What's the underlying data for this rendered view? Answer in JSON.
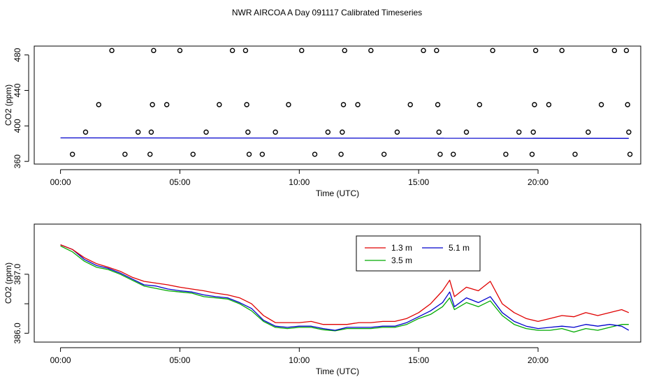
{
  "figure_title": "NWR AIRCOA A  Day 091117  Calibrated Timeseries",
  "chart_data": [
    {
      "type": "scatter",
      "title": "",
      "xlabel": "Time (UTC)",
      "ylabel": "CO2 (ppm)",
      "xlim": [
        -1.1,
        24.3
      ],
      "ylim": [
        357,
        490
      ],
      "x_tick_values": [
        0,
        5,
        10,
        15,
        20
      ],
      "x_tick_labels": [
        "00:00",
        "05:00",
        "10:00",
        "15:00",
        "20:00"
      ],
      "y_tick_values": [
        360,
        400,
        440,
        480
      ],
      "y_tick_labels": [
        "360",
        "400",
        "440",
        "480"
      ],
      "grid": false,
      "colors": {
        "points": "#000000",
        "line_red": "#e00000",
        "line_blue": "#0000cc",
        "line_green": "#00aa00"
      },
      "series": [
        {
          "marker": "open-circle",
          "points": [
            {
              "x": 0.5,
              "y": 368
            },
            {
              "x": 1.05,
              "y": 393
            },
            {
              "x": 1.6,
              "y": 424
            },
            {
              "x": 2.15,
              "y": 485
            },
            {
              "x": 2.7,
              "y": 368
            },
            {
              "x": 3.25,
              "y": 393
            },
            {
              "x": 3.75,
              "y": 368
            },
            {
              "x": 3.8,
              "y": 393
            },
            {
              "x": 3.85,
              "y": 424
            },
            {
              "x": 3.9,
              "y": 485
            },
            {
              "x": 4.45,
              "y": 424
            },
            {
              "x": 5.0,
              "y": 485
            },
            {
              "x": 5.55,
              "y": 368
            },
            {
              "x": 6.1,
              "y": 393
            },
            {
              "x": 6.65,
              "y": 424
            },
            {
              "x": 7.2,
              "y": 485
            },
            {
              "x": 7.75,
              "y": 485
            },
            {
              "x": 7.8,
              "y": 424
            },
            {
              "x": 7.85,
              "y": 393
            },
            {
              "x": 7.9,
              "y": 368
            },
            {
              "x": 8.45,
              "y": 368
            },
            {
              "x": 9.0,
              "y": 393
            },
            {
              "x": 9.55,
              "y": 424
            },
            {
              "x": 10.1,
              "y": 485
            },
            {
              "x": 10.65,
              "y": 368
            },
            {
              "x": 11.2,
              "y": 393
            },
            {
              "x": 11.75,
              "y": 368
            },
            {
              "x": 11.8,
              "y": 393
            },
            {
              "x": 11.85,
              "y": 424
            },
            {
              "x": 11.9,
              "y": 485
            },
            {
              "x": 12.45,
              "y": 424
            },
            {
              "x": 13.0,
              "y": 485
            },
            {
              "x": 13.55,
              "y": 368
            },
            {
              "x": 14.1,
              "y": 393
            },
            {
              "x": 14.65,
              "y": 424
            },
            {
              "x": 15.2,
              "y": 485
            },
            {
              "x": 15.75,
              "y": 485
            },
            {
              "x": 15.8,
              "y": 424
            },
            {
              "x": 15.85,
              "y": 393
            },
            {
              "x": 15.9,
              "y": 368
            },
            {
              "x": 16.45,
              "y": 368
            },
            {
              "x": 17.0,
              "y": 393
            },
            {
              "x": 17.55,
              "y": 424
            },
            {
              "x": 18.1,
              "y": 485
            },
            {
              "x": 18.65,
              "y": 368
            },
            {
              "x": 19.2,
              "y": 393
            },
            {
              "x": 19.75,
              "y": 368
            },
            {
              "x": 19.8,
              "y": 393
            },
            {
              "x": 19.85,
              "y": 424
            },
            {
              "x": 19.9,
              "y": 485
            },
            {
              "x": 20.45,
              "y": 424
            },
            {
              "x": 21.0,
              "y": 485
            },
            {
              "x": 21.55,
              "y": 368
            },
            {
              "x": 22.1,
              "y": 393
            },
            {
              "x": 22.65,
              "y": 424
            },
            {
              "x": 23.2,
              "y": 485
            },
            {
              "x": 23.7,
              "y": 485
            },
            {
              "x": 23.75,
              "y": 424
            },
            {
              "x": 23.8,
              "y": 393
            },
            {
              "x": 23.85,
              "y": 368
            }
          ]
        },
        {
          "marker": "line",
          "color": "#0000cc",
          "x": [
            0,
            23.8
          ],
          "y": [
            386.5,
            386.0
          ]
        }
      ]
    },
    {
      "type": "line",
      "title": "",
      "xlabel": "Time (UTC)",
      "ylabel": "CO2 (ppm)",
      "xlim": [
        -1.1,
        24.3
      ],
      "ylim": [
        385.85,
        387.85
      ],
      "x_tick_values": [
        0,
        5,
        10,
        15,
        20
      ],
      "x_tick_labels": [
        "00:00",
        "05:00",
        "10:00",
        "15:00",
        "20:00"
      ],
      "y_tick_values": [
        386.0,
        386.5,
        387.0
      ],
      "y_tick_labels": [
        "386.0",
        "",
        "387.0"
      ],
      "grid": false,
      "legend_position": "top-center",
      "series": [
        {
          "name": "1.3 m",
          "color": "#e00000",
          "x": [
            0.0,
            0.5,
            1.0,
            1.5,
            2.0,
            2.5,
            3.0,
            3.5,
            4.0,
            4.5,
            5.0,
            5.5,
            6.0,
            6.5,
            7.0,
            7.5,
            8.0,
            8.5,
            9.0,
            9.5,
            10.0,
            10.5,
            11.0,
            11.5,
            12.0,
            12.5,
            13.0,
            13.5,
            14.0,
            14.5,
            15.0,
            15.5,
            16.0,
            16.3,
            16.5,
            17.0,
            17.5,
            18.0,
            18.5,
            19.0,
            19.5,
            20.0,
            20.5,
            21.0,
            21.5,
            22.0,
            22.5,
            23.0,
            23.5,
            23.8
          ],
          "y": [
            387.5,
            387.42,
            387.28,
            387.18,
            387.12,
            387.05,
            386.95,
            386.88,
            386.85,
            386.82,
            386.78,
            386.75,
            386.72,
            386.68,
            386.65,
            386.6,
            386.5,
            386.3,
            386.18,
            386.18,
            386.18,
            386.2,
            386.15,
            386.15,
            386.15,
            386.18,
            386.18,
            386.2,
            386.2,
            386.25,
            386.35,
            386.5,
            386.72,
            386.9,
            386.62,
            386.78,
            386.72,
            386.88,
            386.5,
            386.35,
            386.25,
            386.2,
            386.25,
            386.3,
            386.28,
            386.35,
            386.3,
            386.35,
            386.4,
            386.35
          ]
        },
        {
          "name": "5.1 m",
          "color": "#0000cc",
          "x": [
            0.0,
            0.5,
            1.0,
            1.5,
            2.0,
            2.5,
            3.0,
            3.5,
            4.0,
            4.5,
            5.0,
            5.5,
            6.0,
            6.5,
            7.0,
            7.5,
            8.0,
            8.5,
            9.0,
            9.5,
            10.0,
            10.5,
            11.0,
            11.5,
            12.0,
            12.5,
            13.0,
            13.5,
            14.0,
            14.5,
            15.0,
            15.5,
            16.0,
            16.3,
            16.5,
            17.0,
            17.5,
            18.0,
            18.5,
            19.0,
            19.5,
            20.0,
            20.5,
            21.0,
            21.5,
            22.0,
            22.5,
            23.0,
            23.5,
            23.8
          ],
          "y": [
            387.5,
            387.42,
            387.25,
            387.15,
            387.1,
            387.02,
            386.92,
            386.82,
            386.8,
            386.75,
            386.72,
            386.7,
            386.65,
            386.62,
            386.6,
            386.52,
            386.42,
            386.22,
            386.12,
            386.1,
            386.12,
            386.12,
            386.08,
            386.05,
            386.1,
            386.1,
            386.1,
            386.12,
            386.12,
            386.18,
            386.28,
            386.38,
            386.52,
            386.7,
            386.45,
            386.6,
            386.52,
            386.62,
            386.35,
            386.2,
            386.12,
            386.08,
            386.1,
            386.12,
            386.1,
            386.15,
            386.12,
            386.15,
            386.12,
            386.05
          ]
        },
        {
          "name": "3.5 m",
          "color": "#00aa00",
          "x": [
            0.0,
            0.5,
            1.0,
            1.5,
            2.0,
            2.5,
            3.0,
            3.5,
            4.0,
            4.5,
            5.0,
            5.5,
            6.0,
            6.5,
            7.0,
            7.5,
            8.0,
            8.5,
            9.0,
            9.5,
            10.0,
            10.5,
            11.0,
            11.5,
            12.0,
            12.5,
            13.0,
            13.5,
            14.0,
            14.5,
            15.0,
            15.5,
            16.0,
            16.3,
            16.5,
            17.0,
            17.5,
            18.0,
            18.5,
            19.0,
            19.5,
            20.0,
            20.5,
            21.0,
            21.5,
            22.0,
            22.5,
            23.0,
            23.5,
            23.8
          ],
          "y": [
            387.48,
            387.38,
            387.22,
            387.12,
            387.08,
            387.0,
            386.9,
            386.8,
            386.76,
            386.72,
            386.7,
            386.68,
            386.62,
            386.6,
            386.58,
            386.5,
            386.38,
            386.2,
            386.1,
            386.08,
            386.1,
            386.1,
            386.06,
            386.04,
            386.08,
            386.08,
            386.08,
            386.1,
            386.1,
            386.15,
            386.25,
            386.32,
            386.45,
            386.6,
            386.4,
            386.52,
            386.45,
            386.55,
            386.3,
            386.15,
            386.08,
            386.05,
            386.05,
            386.08,
            386.02,
            386.08,
            386.05,
            386.1,
            386.15,
            386.15
          ]
        }
      ]
    }
  ]
}
